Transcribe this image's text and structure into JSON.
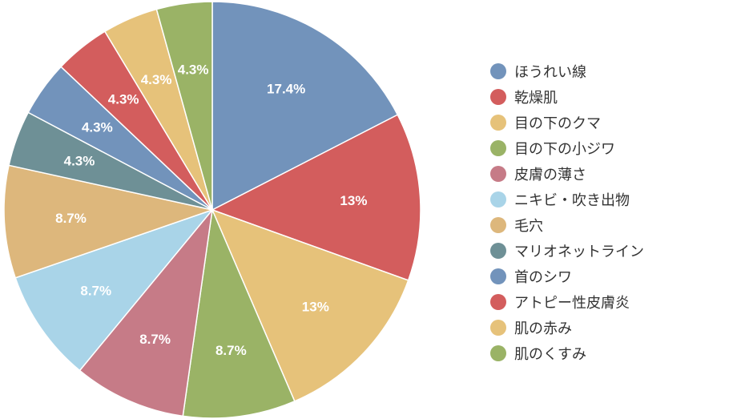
{
  "chart_data": {
    "type": "pie",
    "title": "",
    "slices": [
      {
        "label": "ほうれい線",
        "value": 17.4,
        "display": "17.4%",
        "color": "#7293bb"
      },
      {
        "label": "乾燥肌",
        "value": 13.0,
        "display": "13%",
        "color": "#d35d5d"
      },
      {
        "label": "目の下のクマ",
        "value": 13.0,
        "display": "13%",
        "color": "#e6c27a"
      },
      {
        "label": "目の下の小ジワ",
        "value": 8.7,
        "display": "8.7%",
        "color": "#9ab366"
      },
      {
        "label": "皮膚の薄さ",
        "value": 8.7,
        "display": "8.7%",
        "color": "#c67b87"
      },
      {
        "label": "ニキビ・吹き出物",
        "value": 8.7,
        "display": "8.7%",
        "color": "#a9d4e8"
      },
      {
        "label": "毛穴",
        "value": 8.7,
        "display": "8.7%",
        "color": "#ddb77c"
      },
      {
        "label": "マリオネットライン",
        "value": 4.3,
        "display": "4.3%",
        "color": "#6e9096"
      },
      {
        "label": "首のシワ",
        "value": 4.3,
        "display": "4.3%",
        "color": "#7293bb"
      },
      {
        "label": "アトピー性皮膚炎",
        "value": 4.3,
        "display": "4.3%",
        "color": "#d35d5d"
      },
      {
        "label": "肌の赤み",
        "value": 4.3,
        "display": "4.3%",
        "color": "#e6c27a"
      },
      {
        "label": "肌のくすみ",
        "value": 4.3,
        "display": "4.3%",
        "color": "#9ab366"
      }
    ],
    "legend_position": "right",
    "start": "12 o'clock",
    "direction": "clockwise"
  }
}
